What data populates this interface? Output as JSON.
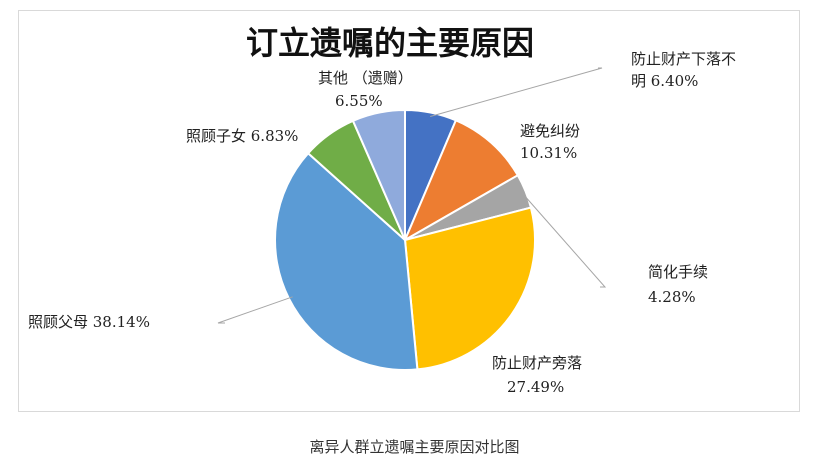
{
  "chart_data": {
    "type": "pie",
    "title": "订立遗嘱的主要原因",
    "slices": [
      {
        "name": "防止财产下落不明",
        "value_label": "6.40%",
        "value": 6.4,
        "color": "#4472c4"
      },
      {
        "name": "避免纠纷",
        "value_label": "10.31%",
        "value": 10.31,
        "color": "#ed7d31"
      },
      {
        "name": "简化手续",
        "value_label": "4.28%",
        "value": 4.28,
        "color": "#a5a5a5"
      },
      {
        "name": "防止财产旁落",
        "value_label": "27.49%",
        "value": 27.49,
        "color": "#ffc000"
      },
      {
        "name": "照顾父母",
        "value_label": "38.14%",
        "value": 38.14,
        "color": "#5b9bd5"
      },
      {
        "name": "照顾子女",
        "value_label": "6.83%",
        "value": 6.83,
        "color": "#70ad47"
      },
      {
        "name": "其他 （遗赠）",
        "value_label": "6.55%",
        "value": 6.55,
        "color": "#8faadc"
      }
    ]
  },
  "caption": "离异人群立遗嘱主要原因对比图"
}
